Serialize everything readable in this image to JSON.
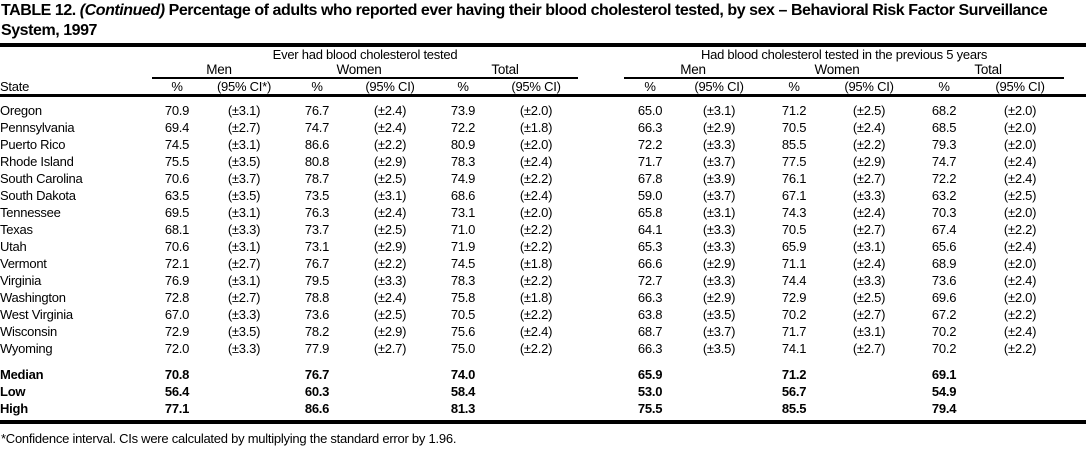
{
  "title": {
    "table_label": "TABLE 12.",
    "continued": "(Continued)",
    "rest": "Percentage of adults who reported ever having their blood cholesterol tested, by sex – Behavioral Risk Factor Surveillance System, 1997"
  },
  "table": {
    "state_header": "State",
    "groups": [
      {
        "title": "Ever had blood cholesterol tested",
        "subgroups": [
          "Men",
          "Women",
          "Total"
        ],
        "col_headers": [
          "%",
          "(95% CI*)",
          "%",
          "(95% CI)",
          "%",
          "(95% CI)"
        ]
      },
      {
        "title": "Had blood cholesterol tested in the previous 5 years",
        "subgroups": [
          "Men",
          "Women",
          "Total"
        ],
        "col_headers": [
          "%",
          "(95% CI)",
          "%",
          "(95% CI)",
          "%",
          "(95% CI)"
        ]
      }
    ],
    "rows": [
      {
        "state": "Oregon",
        "values": [
          "70.9",
          "(±3.1)",
          "76.7",
          "(±2.4)",
          "73.9",
          "(±2.0)",
          "65.0",
          "(±3.1)",
          "71.2",
          "(±2.5)",
          "68.2",
          "(±2.0)"
        ]
      },
      {
        "state": "Pennsylvania",
        "values": [
          "69.4",
          "(±2.7)",
          "74.7",
          "(±2.4)",
          "72.2",
          "(±1.8)",
          "66.3",
          "(±2.9)",
          "70.5",
          "(±2.4)",
          "68.5",
          "(±2.0)"
        ]
      },
      {
        "state": "Puerto Rico",
        "values": [
          "74.5",
          "(±3.1)",
          "86.6",
          "(±2.2)",
          "80.9",
          "(±2.0)",
          "72.2",
          "(±3.3)",
          "85.5",
          "(±2.2)",
          "79.3",
          "(±2.0)"
        ]
      },
      {
        "state": "Rhode Island",
        "values": [
          "75.5",
          "(±3.5)",
          "80.8",
          "(±2.9)",
          "78.3",
          "(±2.4)",
          "71.7",
          "(±3.7)",
          "77.5",
          "(±2.9)",
          "74.7",
          "(±2.4)"
        ]
      },
      {
        "state": "South Carolina",
        "values": [
          "70.6",
          "(±3.7)",
          "78.7",
          "(±2.5)",
          "74.9",
          "(±2.2)",
          "67.8",
          "(±3.9)",
          "76.1",
          "(±2.7)",
          "72.2",
          "(±2.4)"
        ]
      },
      {
        "state": "South Dakota",
        "values": [
          "63.5",
          "(±3.5)",
          "73.5",
          "(±3.1)",
          "68.6",
          "(±2.4)",
          "59.0",
          "(±3.7)",
          "67.1",
          "(±3.3)",
          "63.2",
          "(±2.5)"
        ]
      },
      {
        "state": "Tennessee",
        "values": [
          "69.5",
          "(±3.1)",
          "76.3",
          "(±2.4)",
          "73.1",
          "(±2.0)",
          "65.8",
          "(±3.1)",
          "74.3",
          "(±2.4)",
          "70.3",
          "(±2.0)"
        ]
      },
      {
        "state": "Texas",
        "values": [
          "68.1",
          "(±3.3)",
          "73.7",
          "(±2.5)",
          "71.0",
          "(±2.2)",
          "64.1",
          "(±3.3)",
          "70.5",
          "(±2.7)",
          "67.4",
          "(±2.2)"
        ]
      },
      {
        "state": "Utah",
        "values": [
          "70.6",
          "(±3.1)",
          "73.1",
          "(±2.9)",
          "71.9",
          "(±2.2)",
          "65.3",
          "(±3.3)",
          "65.9",
          "(±3.1)",
          "65.6",
          "(±2.4)"
        ]
      },
      {
        "state": "Vermont",
        "values": [
          "72.1",
          "(±2.7)",
          "76.7",
          "(±2.2)",
          "74.5",
          "(±1.8)",
          "66.6",
          "(±2.9)",
          "71.1",
          "(±2.4)",
          "68.9",
          "(±2.0)"
        ]
      },
      {
        "state": "Virginia",
        "values": [
          "76.9",
          "(±3.1)",
          "79.5",
          "(±3.3)",
          "78.3",
          "(±2.2)",
          "72.7",
          "(±3.3)",
          "74.4",
          "(±3.3)",
          "73.6",
          "(±2.4)"
        ]
      },
      {
        "state": "Washington",
        "values": [
          "72.8",
          "(±2.7)",
          "78.8",
          "(±2.4)",
          "75.8",
          "(±1.8)",
          "66.3",
          "(±2.9)",
          "72.9",
          "(±2.5)",
          "69.6",
          "(±2.0)"
        ]
      },
      {
        "state": "West Virginia",
        "values": [
          "67.0",
          "(±3.3)",
          "73.6",
          "(±2.5)",
          "70.5",
          "(±2.2)",
          "63.8",
          "(±3.5)",
          "70.2",
          "(±2.7)",
          "67.2",
          "(±2.2)"
        ]
      },
      {
        "state": "Wisconsin",
        "values": [
          "72.9",
          "(±3.5)",
          "78.2",
          "(±2.9)",
          "75.6",
          "(±2.4)",
          "68.7",
          "(±3.7)",
          "71.7",
          "(±3.1)",
          "70.2",
          "(±2.4)"
        ]
      },
      {
        "state": "Wyoming",
        "values": [
          "72.0",
          "(±3.3)",
          "77.9",
          "(±2.7)",
          "75.0",
          "(±2.2)",
          "66.3",
          "(±3.5)",
          "74.1",
          "(±2.7)",
          "70.2",
          "(±2.2)"
        ]
      }
    ],
    "summary_rows": [
      {
        "state": "Median",
        "values": [
          "70.8",
          "",
          "76.7",
          "",
          "74.0",
          "",
          "65.9",
          "",
          "71.2",
          "",
          "69.1",
          ""
        ]
      },
      {
        "state": "Low",
        "values": [
          "56.4",
          "",
          "60.3",
          "",
          "58.4",
          "",
          "53.0",
          "",
          "56.7",
          "",
          "54.9",
          ""
        ]
      },
      {
        "state": "High",
        "values": [
          "77.1",
          "",
          "86.6",
          "",
          "81.3",
          "",
          "75.5",
          "",
          "85.5",
          "",
          "79.4",
          ""
        ]
      }
    ]
  },
  "footnote": "*Confidence interval. CIs were calculated by multiplying the standard error by 1.96."
}
